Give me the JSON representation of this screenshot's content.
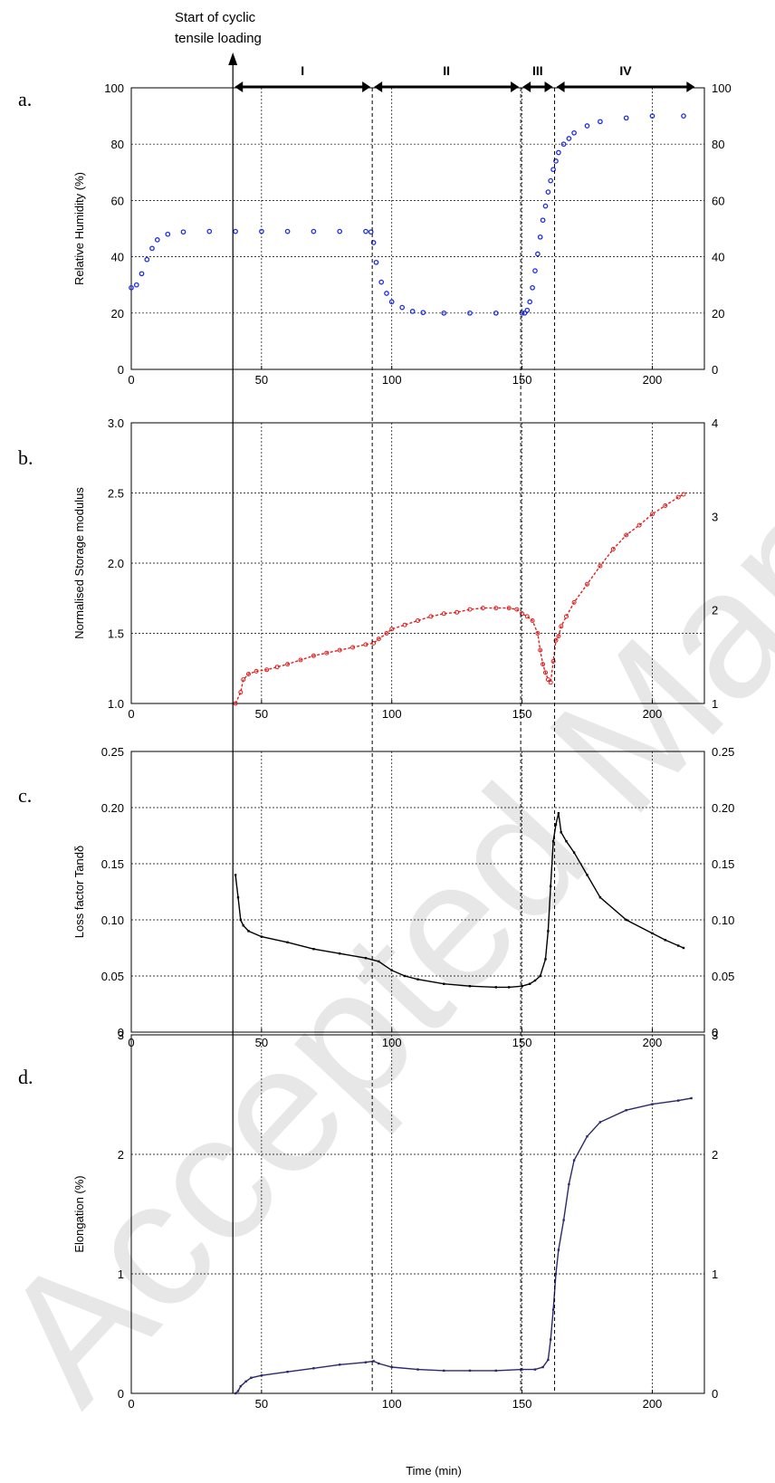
{
  "annotation": {
    "line1": "Start of cyclic",
    "line2": "tensile loading"
  },
  "phases": [
    "I",
    "II",
    "III",
    "IV"
  ],
  "watermark": "Accepted Manuscript",
  "xlabel": "Time (min)",
  "colors": {
    "a": "#1f2fe0",
    "b": "#e02020",
    "c": "#000000",
    "d": "#2a2a6a"
  },
  "chart_data": [
    {
      "panel": "a.",
      "type": "scatter",
      "ylabel": "Relative Humidity (%)",
      "xlim": [
        0,
        220
      ],
      "ylim": [
        0,
        100
      ],
      "ylim_right": [
        0,
        100
      ],
      "xticks": [
        0,
        50,
        100,
        150,
        200
      ],
      "yticks": [
        0,
        20,
        40,
        60,
        80,
        100
      ],
      "yticks_right": [
        0,
        20,
        40,
        60,
        80,
        100
      ],
      "grid": true,
      "series": [
        {
          "x": [
            0,
            2,
            4,
            6,
            8,
            10,
            14,
            20,
            30,
            40,
            50,
            60,
            70,
            80,
            90,
            92,
            93,
            94,
            96,
            98,
            100,
            104,
            108,
            112,
            120,
            130,
            140,
            150,
            151,
            152,
            153,
            154,
            155,
            156,
            157,
            158,
            159,
            160,
            161,
            162,
            163,
            164,
            166,
            168,
            170,
            175,
            180,
            190,
            200,
            212
          ],
          "y": [
            29,
            30,
            34,
            39,
            43,
            46,
            48,
            48.8,
            49,
            49,
            49,
            49,
            49,
            49,
            49,
            48.8,
            45,
            38,
            31,
            27,
            24,
            22,
            20.6,
            20.2,
            20,
            20,
            20,
            20,
            20,
            21,
            24,
            29,
            35,
            41,
            47,
            53,
            58,
            63,
            67,
            71,
            74,
            77,
            80,
            82,
            84,
            86.5,
            88,
            89.3,
            90,
            90
          ]
        }
      ]
    },
    {
      "panel": "b.",
      "type": "line",
      "ylabel": "Normalised Storage modulus",
      "xlim": [
        0,
        220
      ],
      "ylim": [
        1.0,
        3.0
      ],
      "ylim_right": [
        1,
        4
      ],
      "xticks": [
        0,
        50,
        100,
        150,
        200
      ],
      "yticks": [
        "1.0",
        "1.5",
        "2.0",
        "2.5",
        "3.0"
      ],
      "yticks_right": [
        1,
        2,
        3,
        4
      ],
      "grid": true,
      "series": [
        {
          "x": [
            40,
            42,
            43,
            45,
            48,
            52,
            56,
            60,
            65,
            70,
            75,
            80,
            85,
            90,
            93,
            95,
            98,
            100,
            105,
            110,
            115,
            120,
            125,
            130,
            135,
            140,
            145,
            148,
            150,
            152,
            154,
            156,
            157,
            158,
            159,
            160,
            161,
            162,
            163,
            164,
            165,
            167,
            170,
            175,
            180,
            185,
            190,
            195,
            200,
            205,
            210,
            212
          ],
          "y": [
            1.0,
            1.08,
            1.17,
            1.21,
            1.23,
            1.24,
            1.26,
            1.28,
            1.31,
            1.34,
            1.36,
            1.38,
            1.4,
            1.42,
            1.43,
            1.46,
            1.5,
            1.53,
            1.56,
            1.59,
            1.62,
            1.64,
            1.65,
            1.67,
            1.68,
            1.68,
            1.68,
            1.67,
            1.64,
            1.62,
            1.59,
            1.5,
            1.38,
            1.28,
            1.22,
            1.17,
            1.15,
            1.3,
            1.45,
            1.48,
            1.55,
            1.62,
            1.72,
            1.85,
            1.98,
            2.1,
            2.2,
            2.27,
            2.35,
            2.41,
            2.47,
            2.49
          ]
        }
      ]
    },
    {
      "panel": "c.",
      "type": "line",
      "ylabel": "Loss factor Tandδ",
      "xlim": [
        0,
        220
      ],
      "ylim": [
        0,
        0.25
      ],
      "ylim_right": [
        0,
        0.25
      ],
      "xticks": [
        0,
        50,
        100,
        150,
        200
      ],
      "yticks": [
        "0",
        "0.05",
        "0.10",
        "0.15",
        "0.20",
        "0.25"
      ],
      "yticks_right": [
        "0",
        "0.05",
        "0.10",
        "0.15",
        "0.20",
        "0.25"
      ],
      "grid": true,
      "series": [
        {
          "x": [
            40,
            41,
            42,
            43,
            45,
            50,
            60,
            70,
            80,
            90,
            95,
            100,
            105,
            110,
            120,
            130,
            140,
            145,
            150,
            153,
            155,
            157,
            159,
            160,
            161,
            162,
            163,
            164,
            165,
            167,
            170,
            175,
            180,
            190,
            200,
            205,
            210,
            212
          ],
          "y": [
            0.14,
            0.12,
            0.1,
            0.095,
            0.09,
            0.085,
            0.08,
            0.074,
            0.07,
            0.066,
            0.063,
            0.055,
            0.05,
            0.047,
            0.043,
            0.041,
            0.04,
            0.04,
            0.041,
            0.043,
            0.046,
            0.05,
            0.065,
            0.09,
            0.13,
            0.17,
            0.185,
            0.195,
            0.178,
            0.17,
            0.16,
            0.14,
            0.12,
            0.1,
            0.088,
            0.082,
            0.077,
            0.075
          ]
        }
      ]
    },
    {
      "panel": "d.",
      "type": "line",
      "ylabel": "Elongation (%)",
      "xlim": [
        0,
        220
      ],
      "ylim": [
        0,
        3
      ],
      "ylim_right": [
        0,
        3
      ],
      "xticks": [
        0,
        50,
        100,
        150,
        200
      ],
      "yticks": [
        0,
        1,
        2,
        3
      ],
      "yticks_right": [
        0,
        1,
        2,
        3
      ],
      "grid": true,
      "series": [
        {
          "x": [
            40,
            41,
            42,
            44,
            46,
            50,
            60,
            70,
            80,
            90,
            93,
            95,
            100,
            110,
            120,
            130,
            140,
            150,
            155,
            158,
            160,
            161,
            162,
            163,
            164,
            166,
            168,
            170,
            175,
            180,
            190,
            200,
            210,
            215
          ],
          "y": [
            0,
            0.02,
            0.06,
            0.1,
            0.13,
            0.15,
            0.18,
            0.21,
            0.24,
            0.26,
            0.27,
            0.25,
            0.22,
            0.2,
            0.19,
            0.19,
            0.19,
            0.2,
            0.2,
            0.22,
            0.28,
            0.45,
            0.7,
            1.0,
            1.2,
            1.45,
            1.75,
            1.95,
            2.15,
            2.27,
            2.37,
            2.42,
            2.45,
            2.47
          ]
        }
      ]
    }
  ]
}
